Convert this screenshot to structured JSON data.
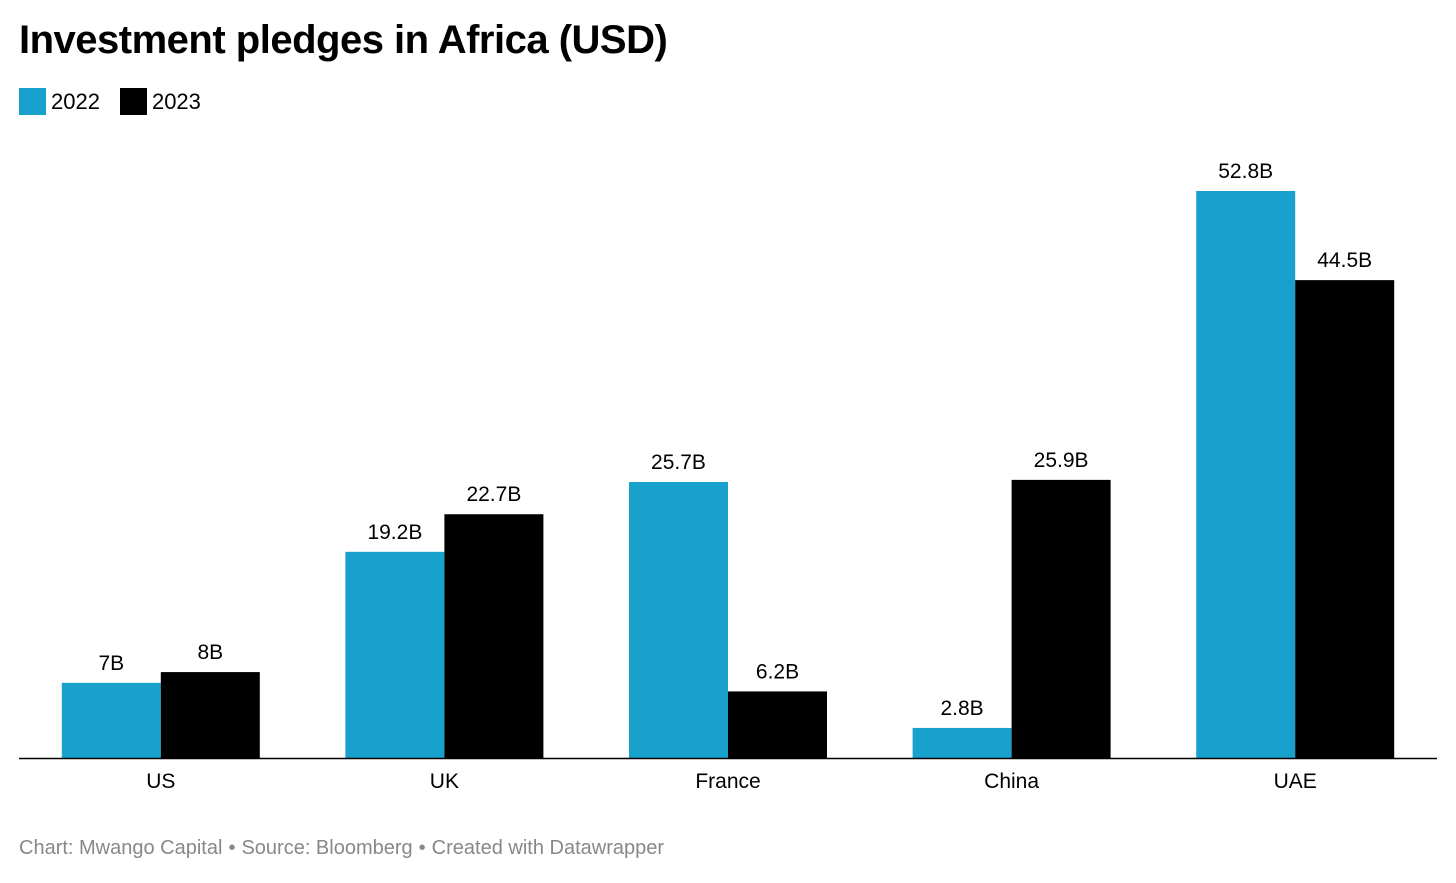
{
  "chart_data": {
    "type": "bar",
    "title": "Investment pledges in Africa (USD)",
    "categories": [
      "US",
      "UK",
      "France",
      "China",
      "UAE"
    ],
    "series": [
      {
        "name": "2022",
        "color": "#18a1cd",
        "values": [
          7,
          19.2,
          25.7,
          2.8,
          52.8
        ],
        "labels": [
          "7B",
          "19.2B",
          "25.7B",
          "2.8B",
          "52.8B"
        ]
      },
      {
        "name": "2023",
        "color": "#000000",
        "values": [
          8,
          22.7,
          6.2,
          25.9,
          44.5
        ],
        "labels": [
          "8B",
          "22.7B",
          "6.2B",
          "25.9B",
          "44.5B"
        ]
      }
    ],
    "ylim": [
      0,
      52.8
    ],
    "grid": false,
    "legend": "top-left"
  },
  "footer": {
    "chart_credit": "Chart: Mwango Capital",
    "source": "Source: Bloomberg",
    "created_with": "Created with Datawrapper",
    "separator": "•"
  }
}
